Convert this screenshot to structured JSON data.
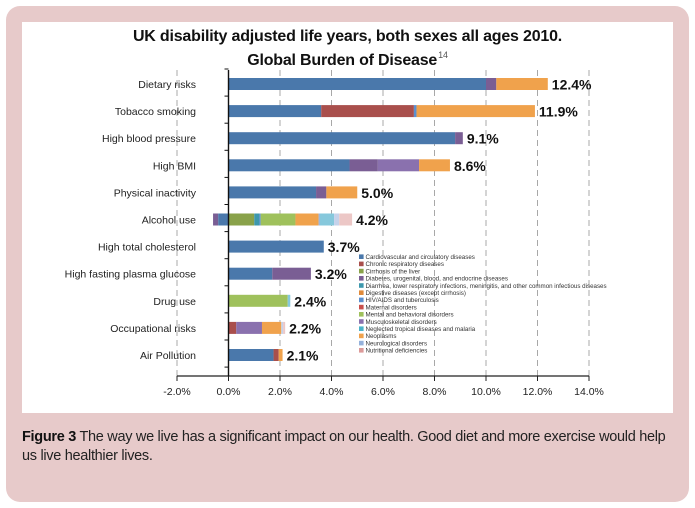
{
  "figure": {
    "caption_label": "Figure 3",
    "caption_text": " The way we live has a significant impact on our health. Good diet and more exercise would help us live healthier lives.",
    "frame_color": "#e7caca"
  },
  "chart_data": {
    "type": "bar",
    "orientation": "horizontal",
    "stacked": true,
    "title": "UK disability adjusted life years, both sexes all ages 2010.",
    "subtitle": "Global Burden of Disease",
    "title_superscript": "14",
    "xlabel": "",
    "ylabel": "",
    "xlim": [
      -2.0,
      14.0
    ],
    "x_ticks": [
      -2.0,
      0.0,
      2.0,
      4.0,
      6.0,
      8.0,
      10.0,
      12.0,
      14.0
    ],
    "x_tick_labels": [
      "-2.0%",
      "0.0%",
      "2.0%",
      "4.0%",
      "6.0%",
      "8.0%",
      "10.0%",
      "12.0%",
      "14.0%"
    ],
    "grid": "vertical dashed",
    "legend_position": "right-bottom inside plot",
    "legend": [
      {
        "name": "Cardiovascular and circulatory diseases",
        "color": "#4a78ab"
      },
      {
        "name": "Chronic respiratory diseases",
        "color": "#a94f4c"
      },
      {
        "name": "Cirrhosis of the liver",
        "color": "#89a24a"
      },
      {
        "name": "Diabetes, urogenital, blood, and endocrine diseases",
        "color": "#7a5e94"
      },
      {
        "name": "Diarrhea, lower respiratory infections, meningitis, and other common infectious diseases",
        "color": "#3d98ad"
      },
      {
        "name": "Digestive diseases (except cirrhosis)",
        "color": "#e08a3a"
      },
      {
        "name": "HIV/AIDS and tuberculosis",
        "color": "#5b8fcf"
      },
      {
        "name": "Maternal disorders",
        "color": "#c9504c"
      },
      {
        "name": "Mental and behavioral disorders",
        "color": "#9fc15c"
      },
      {
        "name": "Musculoskeletal disorders",
        "color": "#8a71ae"
      },
      {
        "name": "Neglected tropical diseases and malaria",
        "color": "#4bb3c9"
      },
      {
        "name": "Neoplasms",
        "color": "#f0a24c"
      },
      {
        "name": "Neurological disorders",
        "color": "#94b1db"
      },
      {
        "name": "Nutritional deficiencies",
        "color": "#dc9a99"
      }
    ],
    "categories": [
      "Dietary risks",
      "Tobacco smoking",
      "High blood pressure",
      "High BMI",
      "Physical inactivity",
      "Alcohol use",
      "High total cholesterol",
      "High fasting plasma glucose",
      "Drug use",
      "Occupational risks",
      "Air Pollution"
    ],
    "totals": [
      "12.4%",
      "11.9%",
      "9.1%",
      "8.6%",
      "5.0%",
      "4.2%",
      "3.7%",
      "3.2%",
      "2.4%",
      "2.2%",
      "2.1%"
    ],
    "bars": [
      {
        "category": "Dietary risks",
        "segments": [
          {
            "series": "Cardiovascular and circulatory diseases",
            "from": 0.0,
            "to": 10.0,
            "color": "#4a78ab"
          },
          {
            "series": "Diabetes, urogenital, blood, and endocrine diseases",
            "from": 10.0,
            "to": 10.4,
            "color": "#7a5e94"
          },
          {
            "series": "Neoplasms",
            "from": 10.4,
            "to": 12.4,
            "color": "#f0a24c"
          }
        ]
      },
      {
        "category": "Tobacco smoking",
        "segments": [
          {
            "series": "Cardiovascular and circulatory diseases",
            "from": 0.0,
            "to": 3.6,
            "color": "#4a78ab"
          },
          {
            "series": "Chronic respiratory diseases",
            "from": 3.6,
            "to": 7.2,
            "color": "#a94f4c"
          },
          {
            "series": "HIV/AIDS and tuberculosis",
            "from": 7.2,
            "to": 7.3,
            "color": "#5b8fcf"
          },
          {
            "series": "Neoplasms",
            "from": 7.3,
            "to": 11.9,
            "color": "#f0a24c"
          }
        ]
      },
      {
        "category": "High blood pressure",
        "segments": [
          {
            "series": "Cardiovascular and circulatory diseases",
            "from": 0.0,
            "to": 8.8,
            "color": "#4a78ab"
          },
          {
            "series": "Diabetes, urogenital, blood, and endocrine diseases",
            "from": 8.8,
            "to": 9.1,
            "color": "#7a5e94"
          }
        ]
      },
      {
        "category": "High BMI",
        "segments": [
          {
            "series": "Cardiovascular and circulatory diseases",
            "from": 0.0,
            "to": 4.7,
            "color": "#4a78ab"
          },
          {
            "series": "Diabetes, urogenital, blood, and endocrine diseases",
            "from": 4.7,
            "to": 5.8,
            "color": "#7a5e94"
          },
          {
            "series": "Musculoskeletal disorders",
            "from": 5.8,
            "to": 7.4,
            "color": "#8a71ae"
          },
          {
            "series": "Neoplasms",
            "from": 7.4,
            "to": 8.6,
            "color": "#f0a24c"
          }
        ]
      },
      {
        "category": "Physical inactivity",
        "segments": [
          {
            "series": "Cardiovascular and circulatory diseases",
            "from": 0.0,
            "to": 3.4,
            "color": "#4a78ab"
          },
          {
            "series": "Diabetes, urogenital, blood, and endocrine diseases",
            "from": 3.4,
            "to": 3.8,
            "color": "#7a5e94"
          },
          {
            "series": "Neoplasms",
            "from": 3.8,
            "to": 5.0,
            "color": "#f0a24c"
          }
        ]
      },
      {
        "category": "Alcohol use",
        "segments": [
          {
            "series": "Diabetes, urogenital, blood, and endocrine diseases",
            "from": -0.6,
            "to": -0.4,
            "color": "#7a5e94"
          },
          {
            "series": "Cardiovascular and circulatory diseases",
            "from": -0.4,
            "to": 0.0,
            "color": "#4a78ab"
          },
          {
            "series": "Cirrhosis of the liver",
            "from": 0.0,
            "to": 1.0,
            "color": "#89a24a"
          },
          {
            "series": "Diarrhea, lower respiratory infections, meningitis, and other common infectious diseases",
            "from": 1.0,
            "to": 1.2,
            "color": "#3d98ad"
          },
          {
            "series": "HIV/AIDS and tuberculosis",
            "from": 1.2,
            "to": 1.25,
            "color": "#5b8fcf"
          },
          {
            "series": "Mental and behavioral disorders",
            "from": 1.25,
            "to": 2.6,
            "color": "#9fc15c"
          },
          {
            "series": "Neoplasms",
            "from": 2.6,
            "to": 3.5,
            "color": "#f0a24c"
          },
          {
            "series": "Neurological disorders",
            "from": 3.5,
            "to": 3.55,
            "color": "#94b1db"
          },
          {
            "series": "Neglected tropical diseases and malaria",
            "from": 3.55,
            "to": 4.1,
            "color": "#86c8dc"
          },
          {
            "series": "Neurological disorders",
            "from": 4.1,
            "to": 4.3,
            "color": "#c5d2ea"
          },
          {
            "series": "Nutritional deficiencies",
            "from": 4.3,
            "to": 4.8,
            "color": "#ecc7c6"
          }
        ]
      },
      {
        "category": "High total cholesterol",
        "segments": [
          {
            "series": "Cardiovascular and circulatory diseases",
            "from": 0.0,
            "to": 3.7,
            "color": "#4a78ab"
          }
        ]
      },
      {
        "category": "High fasting plasma glucose",
        "segments": [
          {
            "series": "Cardiovascular and circulatory diseases",
            "from": 0.0,
            "to": 1.7,
            "color": "#4a78ab"
          },
          {
            "series": "Diabetes, urogenital, blood, and endocrine diseases",
            "from": 1.7,
            "to": 3.2,
            "color": "#7a5e94"
          }
        ]
      },
      {
        "category": "Drug use",
        "segments": [
          {
            "series": "Mental and behavioral disorders",
            "from": 0.0,
            "to": 2.3,
            "color": "#9fc15c"
          },
          {
            "series": "Neglected tropical diseases and malaria",
            "from": 2.3,
            "to": 2.4,
            "color": "#86c8dc"
          }
        ]
      },
      {
        "category": "Occupational risks",
        "segments": [
          {
            "series": "Chronic respiratory diseases",
            "from": 0.0,
            "to": 0.3,
            "color": "#a94f4c"
          },
          {
            "series": "Musculoskeletal disorders",
            "from": 0.3,
            "to": 1.3,
            "color": "#8a71ae"
          },
          {
            "series": "Neoplasms",
            "from": 1.3,
            "to": 2.05,
            "color": "#f0a24c"
          },
          {
            "series": "Neurological disorders",
            "from": 2.05,
            "to": 2.12,
            "color": "#c5d2ea"
          },
          {
            "series": "Nutritional deficiencies",
            "from": 2.12,
            "to": 2.2,
            "color": "#ecc7c6"
          }
        ]
      },
      {
        "category": "Air Pollution",
        "segments": [
          {
            "series": "Cardiovascular and circulatory diseases",
            "from": 0.0,
            "to": 1.75,
            "color": "#4a78ab"
          },
          {
            "series": "Chronic respiratory diseases",
            "from": 1.75,
            "to": 1.95,
            "color": "#a94f4c"
          },
          {
            "series": "Neoplasms",
            "from": 1.95,
            "to": 2.1,
            "color": "#f0a24c"
          }
        ]
      }
    ]
  }
}
